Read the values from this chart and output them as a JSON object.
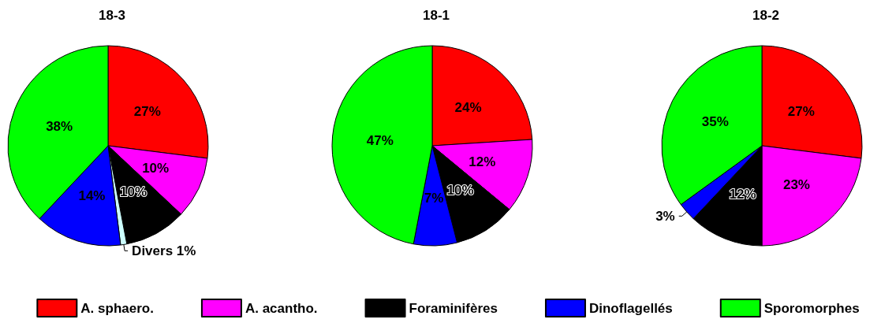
{
  "chart_data": {
    "type": "pie",
    "categories": [
      "A. sphaero.",
      "A. acantho.",
      "Foraminifères",
      "Divers",
      "Dinoflagellés",
      "Sporomorphes"
    ],
    "colors": [
      "#ff0000",
      "#ff00ff",
      "#000000",
      "#ccffff",
      "#0000ff",
      "#00ff00"
    ],
    "series": [
      {
        "name": "18-3",
        "values": [
          27,
          10,
          10,
          1,
          14,
          38
        ],
        "value_labels": [
          "27%",
          "10%",
          "10%",
          "1%",
          "14%",
          "38%"
        ]
      },
      {
        "name": "18-1",
        "values": [
          24,
          12,
          10,
          null,
          7,
          47
        ],
        "value_labels": [
          "24%",
          "12%",
          "10%",
          null,
          "7%",
          "47%"
        ]
      },
      {
        "name": "18-2",
        "values": [
          27,
          23,
          12,
          null,
          3,
          35
        ],
        "value_labels": [
          "27%",
          "23%",
          "12%",
          null,
          "3%",
          "35%"
        ]
      }
    ],
    "legend": "bottom"
  }
}
